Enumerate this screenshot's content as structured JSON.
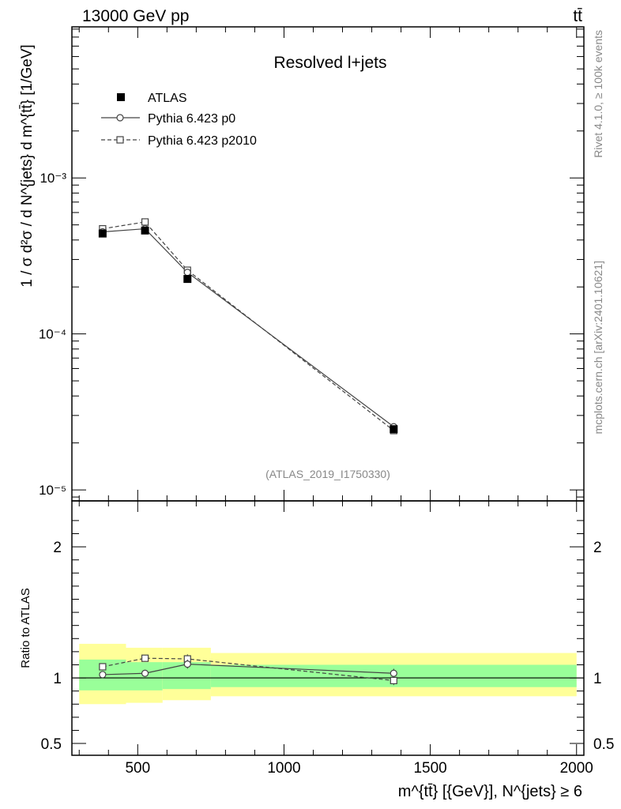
{
  "header": {
    "energy_label": "13000 GeV pp",
    "process_label": "tt̄"
  },
  "side_labels": {
    "rivet": "Rivet 4.1.0, ≥ 100k events",
    "mcplots": "mcplots.cern.ch [arXiv:2401.10621]"
  },
  "chart_data": [
    {
      "type": "line",
      "panel": "main",
      "title": "Resolved l+jets",
      "analysis_id": "(ATLAS_2019_I1750330)",
      "ylabel": "1 / σ d²σ / d N^{jets} d m^{tt̄} [1/GeV]",
      "yscale": "log",
      "xlim": [
        275,
        2025
      ],
      "ylim": [
        8.5e-06,
        0.0093
      ],
      "y_tick_labels": [
        "10⁻⁵",
        "10⁻⁴",
        "10⁻³"
      ],
      "y_tick_values": [
        1e-05,
        0.0001,
        0.001
      ],
      "legend_position": "top-left",
      "legend": [
        "ATLAS",
        "Pythia 6.423 p0",
        "Pythia 6.423 p2010"
      ],
      "series": [
        {
          "name": "ATLAS",
          "style": "marker-square-filled",
          "x": [
            380,
            525,
            670,
            1375
          ],
          "y": [
            0.00044,
            0.00046,
            0.000225,
            2.45e-05
          ]
        },
        {
          "name": "Pythia 6.423 p0",
          "style": "solid-circle",
          "x": [
            380,
            525,
            670,
            1375
          ],
          "y": [
            0.000451,
            0.000472,
            0.000248,
            2.54e-05
          ]
        },
        {
          "name": "Pythia 6.423 p2010",
          "style": "dashed-square",
          "x": [
            380,
            525,
            670,
            1375
          ],
          "y": [
            0.000472,
            0.000522,
            0.000256,
            2.4e-05
          ]
        }
      ]
    },
    {
      "type": "line",
      "panel": "ratio",
      "ylabel": "Ratio to ATLAS",
      "xlabel": "m^{tt̄} [{GeV}], N^{jets} ≥ 6",
      "xlim": [
        275,
        2025
      ],
      "ylim": [
        0.41,
        2.35
      ],
      "x_tick_labels": [
        "500",
        "1000",
        "1500",
        "2000"
      ],
      "x_tick_values": [
        500,
        1000,
        1500,
        2000
      ],
      "y_tick_labels": [
        "0.5",
        "1",
        "2"
      ],
      "y_tick_values": [
        0.5,
        1,
        2
      ],
      "reference_line": 1,
      "bands": {
        "bins": [
          [
            300,
            460
          ],
          [
            460,
            585
          ],
          [
            585,
            750
          ],
          [
            750,
            2000
          ]
        ],
        "inner": [
          [
            0.905,
            1.14
          ],
          [
            0.905,
            1.12
          ],
          [
            0.915,
            1.12
          ],
          [
            0.93,
            1.1
          ]
        ],
        "outer": [
          [
            0.8,
            1.26
          ],
          [
            0.81,
            1.23
          ],
          [
            0.83,
            1.23
          ],
          [
            0.86,
            1.19
          ]
        ],
        "inner_color": "#99ff99",
        "outer_color": "#ffff99"
      },
      "series": [
        {
          "name": "Pythia 6.423 p0",
          "style": "solid-circle",
          "x": [
            380,
            525,
            670,
            1375
          ],
          "y": [
            1.025,
            1.035,
            1.105,
            1.035
          ],
          "err": [
            0.025,
            0.02,
            0.035,
            0.035
          ]
        },
        {
          "name": "Pythia 6.423 p2010",
          "style": "dashed-square",
          "x": [
            380,
            525,
            670,
            1375
          ],
          "y": [
            1.085,
            1.15,
            1.145,
            0.98
          ],
          "err": [
            0.025,
            0.025,
            0.035,
            0.035
          ]
        }
      ]
    }
  ]
}
